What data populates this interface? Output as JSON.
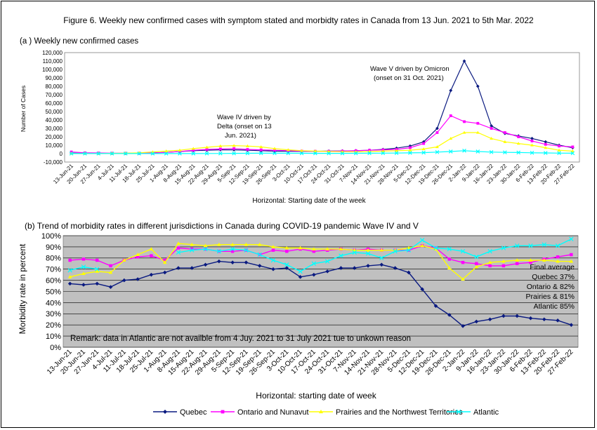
{
  "figure_title": "Figure 6. Weekly new confirmed cases with symptom stated and morbidty rates  in Canada from 13 Jun. 2021 to 5th Mar. 2022",
  "colors": {
    "quebec": "#0a1a80",
    "ontario": "#ff00ff",
    "prairies": "#ffff00",
    "atlantic": "#00ffff",
    "plot_bg": "#c0c0c0",
    "grid": "#000000"
  },
  "chart_data": [
    {
      "type": "line",
      "title": "(a ) Weekly new confirmed cases",
      "xlabel": "Horizontal: Starting date of the  week",
      "ylabel": "Number of Cases",
      "ylim": [
        -10000,
        120000
      ],
      "yticks": [
        "-10,000",
        "0",
        "10,000",
        "20,000",
        "30,000",
        "40,000",
        "50,000",
        "60,000",
        "70,000",
        "80,000",
        "90,000",
        "100,000",
        "110,000",
        "120,000"
      ],
      "grid": false,
      "categories": [
        "13-Jun-21",
        "20-Jun-21",
        "27-Jun-21",
        "4-Jul-21",
        "11-Jul-21",
        "18-Jul-21",
        "25-Jul-21",
        "1-Aug-21",
        "8-Aug-21",
        "15-Aug-21",
        "22-Aug-21",
        "29-Aug-21",
        "5-Sep-21",
        "12-Sep-21",
        "19-Sep-21",
        "26-Sep-21",
        "3-Oct-21",
        "10-Oct-21",
        "17-Oct-21",
        "24-Oct-21",
        "31-Oct-21",
        "7-Nov-21",
        "14-Nov-21",
        "21-Nov-21",
        "28-Nov-21",
        "5-Dec-21",
        "12-Dec-21",
        "19-Dec-21",
        "26-Dec-21",
        "2-Jan-22",
        "9-Jan-22",
        "16-Jan-22",
        "23-Jan-22",
        "30-Jan-22",
        "6-Feb-22",
        "13-Feb-22",
        "20-Feb-22",
        "27-Feb-22"
      ],
      "series": [
        {
          "name": "Quebec",
          "values": [
            500,
            400,
            300,
            300,
            300,
            400,
            800,
            1500,
            2500,
            3500,
            4000,
            4500,
            4500,
            4000,
            3500,
            3000,
            2800,
            2700,
            2800,
            3000,
            3200,
            3500,
            4000,
            5000,
            6500,
            9000,
            14000,
            30000,
            75000,
            110000,
            80000,
            33000,
            24000,
            21000,
            18000,
            14000,
            10000,
            7000
          ]
        },
        {
          "name": "Ontario and Nunavut",
          "values": [
            2000,
            1000,
            800,
            600,
            500,
            500,
            800,
            1500,
            2500,
            4000,
            5000,
            5500,
            6000,
            5000,
            4500,
            4000,
            3500,
            3000,
            2800,
            2800,
            3000,
            3500,
            4000,
            4500,
            5000,
            7000,
            12000,
            25000,
            45000,
            38000,
            36000,
            30000,
            25000,
            20000,
            15000,
            11000,
            9000,
            8000
          ]
        },
        {
          "name": "Prairies and the Northwest Territories",
          "values": [
            200,
            200,
            200,
            300,
            500,
            1000,
            2000,
            3000,
            4000,
            6000,
            7500,
            9000,
            9500,
            9000,
            8000,
            6000,
            4500,
            3500,
            3000,
            2500,
            2300,
            2200,
            2500,
            3000,
            3500,
            4000,
            5500,
            8000,
            18000,
            25000,
            25000,
            18000,
            14000,
            12000,
            10000,
            7000,
            4000,
            3000
          ]
        },
        {
          "name": "Atlantic",
          "values": [
            50,
            50,
            50,
            50,
            50,
            50,
            50,
            50,
            50,
            100,
            150,
            200,
            300,
            400,
            500,
            500,
            500,
            400,
            350,
            300,
            300,
            400,
            500,
            600,
            700,
            900,
            1200,
            1800,
            2500,
            3500,
            2500,
            1800,
            1500,
            1300,
            1000,
            800,
            600,
            500
          ]
        }
      ],
      "annotations": [
        "Wave V driven by Omicron (onset on 31 Oct. 2021)",
        "Wave IV driven by Delta (onset on 13 Jun. 2021)"
      ]
    },
    {
      "type": "line",
      "title": "(b) Trend of morbidity rates in different jurisdictions in Canada during COVID-19 pandemic Wave IV and V",
      "xlabel": "Horizontal: starting date of week",
      "ylabel": "Morbidity rate in percent",
      "ylim": [
        0,
        100
      ],
      "yticks": [
        "0%",
        "10%",
        "20%",
        "30%",
        "40%",
        "50%",
        "60%",
        "70%",
        "80%",
        "90%",
        "100%"
      ],
      "grid": true,
      "categories": [
        "13-Jun-21",
        "20-Jun-21",
        "27-Jun-21",
        "4-Jul-21",
        "11-Jul-21",
        "18-Jul-21",
        "25-Jul-21",
        "1-Aug-21",
        "8-Aug-21",
        "15-Aug-21",
        "22-Aug-21",
        "29-Aug-21",
        "5-Sep-21",
        "12-Sep-21",
        "19-Sep-21",
        "26-Sep-21",
        "3-Oct-21",
        "10-Oct-21",
        "17-Oct-21",
        "24-Oct-21",
        "31-Oct-21",
        "7-Nov-21",
        "14-Nov-21",
        "21-Nov-21",
        "28-Nov-21",
        "5-Dec-21",
        "12-Dec-21",
        "19-Dec-21",
        "26-Dec-21",
        "2-Jan-22",
        "9-Jan-22",
        "16-Jan-22",
        "23-Jan-22",
        "30-Jan-22",
        "6-Feb-22",
        "13-Feb-22",
        "20-Feb-22",
        "27-Feb-22"
      ],
      "series": [
        {
          "name": "Quebec",
          "values": [
            57,
            56,
            57,
            54,
            60,
            61,
            65,
            67,
            71,
            71,
            74,
            77,
            76,
            76,
            73,
            70,
            71,
            63,
            65,
            68,
            71,
            71,
            73,
            74,
            71,
            67,
            52,
            37,
            29,
            19,
            23,
            25,
            28,
            28,
            26,
            25,
            24,
            20
          ]
        },
        {
          "name": "Ontario and Nunavut",
          "values": [
            78,
            79,
            78,
            73,
            78,
            81,
            82,
            78,
            89,
            88,
            88,
            86,
            86,
            87,
            83,
            87,
            86,
            88,
            86,
            87,
            88,
            87,
            88,
            87,
            87,
            87,
            91,
            89,
            79,
            76,
            75,
            73,
            73,
            75,
            76,
            79,
            81,
            83
          ]
        },
        {
          "name": "Prairies and the Northwest Territories",
          "values": [
            63,
            66,
            68,
            67,
            78,
            83,
            88,
            76,
            93,
            92,
            91,
            92,
            92,
            92,
            92,
            90,
            89,
            89,
            88,
            88,
            88,
            87,
            87,
            87,
            87,
            89,
            91,
            88,
            71,
            61,
            72,
            76,
            77,
            78,
            78,
            78,
            77,
            77
          ]
        },
        {
          "name": "Atlantic",
          "values": [
            69,
            72,
            70,
            null,
            null,
            null,
            null,
            null,
            85,
            87,
            88,
            86,
            88,
            87,
            83,
            78,
            74,
            68,
            75,
            77,
            82,
            85,
            84,
            80,
            86,
            87,
            96,
            89,
            88,
            86,
            81,
            86,
            89,
            91,
            91,
            92,
            91,
            97
          ]
        }
      ],
      "remark": "Remark: data in Atlantic are not availble from 4 Juy. 2021 to 31 July 2021 tue to unkown reason",
      "final_average": [
        "Final average",
        "Quebec 37%",
        "Ontario & 82%",
        "Prairies & 81%",
        "Atlantic 85%"
      ]
    }
  ]
}
